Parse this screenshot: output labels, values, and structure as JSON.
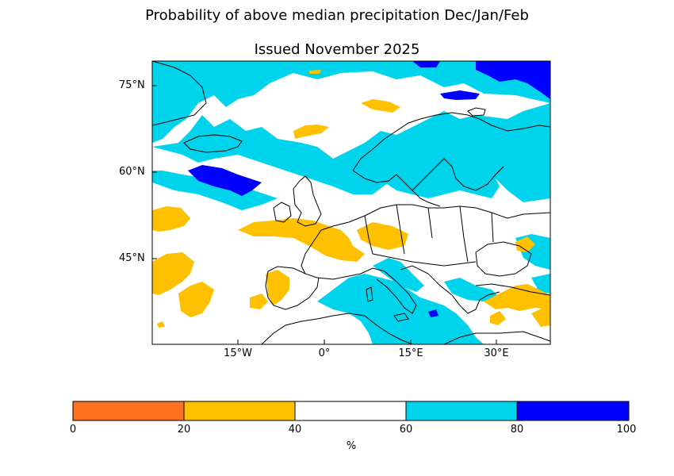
{
  "title": "Probability of above median precipitation Dec/Jan/Feb",
  "subtitle": "Issued November 2025",
  "axes": {
    "lat_ticks": [
      "75°N",
      "60°N",
      "45°N"
    ],
    "lon_ticks": [
      "15°W",
      "0°",
      "15°E",
      "30°E"
    ]
  },
  "colorbar": {
    "ticks": [
      "0",
      "20",
      "40",
      "60",
      "80",
      "100"
    ],
    "label": "%",
    "bins": [
      {
        "range": "0-20",
        "color": "#ff7020"
      },
      {
        "range": "20-40",
        "color": "#ffc000"
      },
      {
        "range": "40-60",
        "color": "#ffffff"
      },
      {
        "range": "60-80",
        "color": "#00d4ec"
      },
      {
        "range": "80-100",
        "color": "#0000ff"
      }
    ]
  },
  "colors": {
    "cyan": "#00d4ec",
    "blue": "#0000ff",
    "yellow": "#ffc000",
    "orange": "#ff7020",
    "coast": "#000000"
  }
}
